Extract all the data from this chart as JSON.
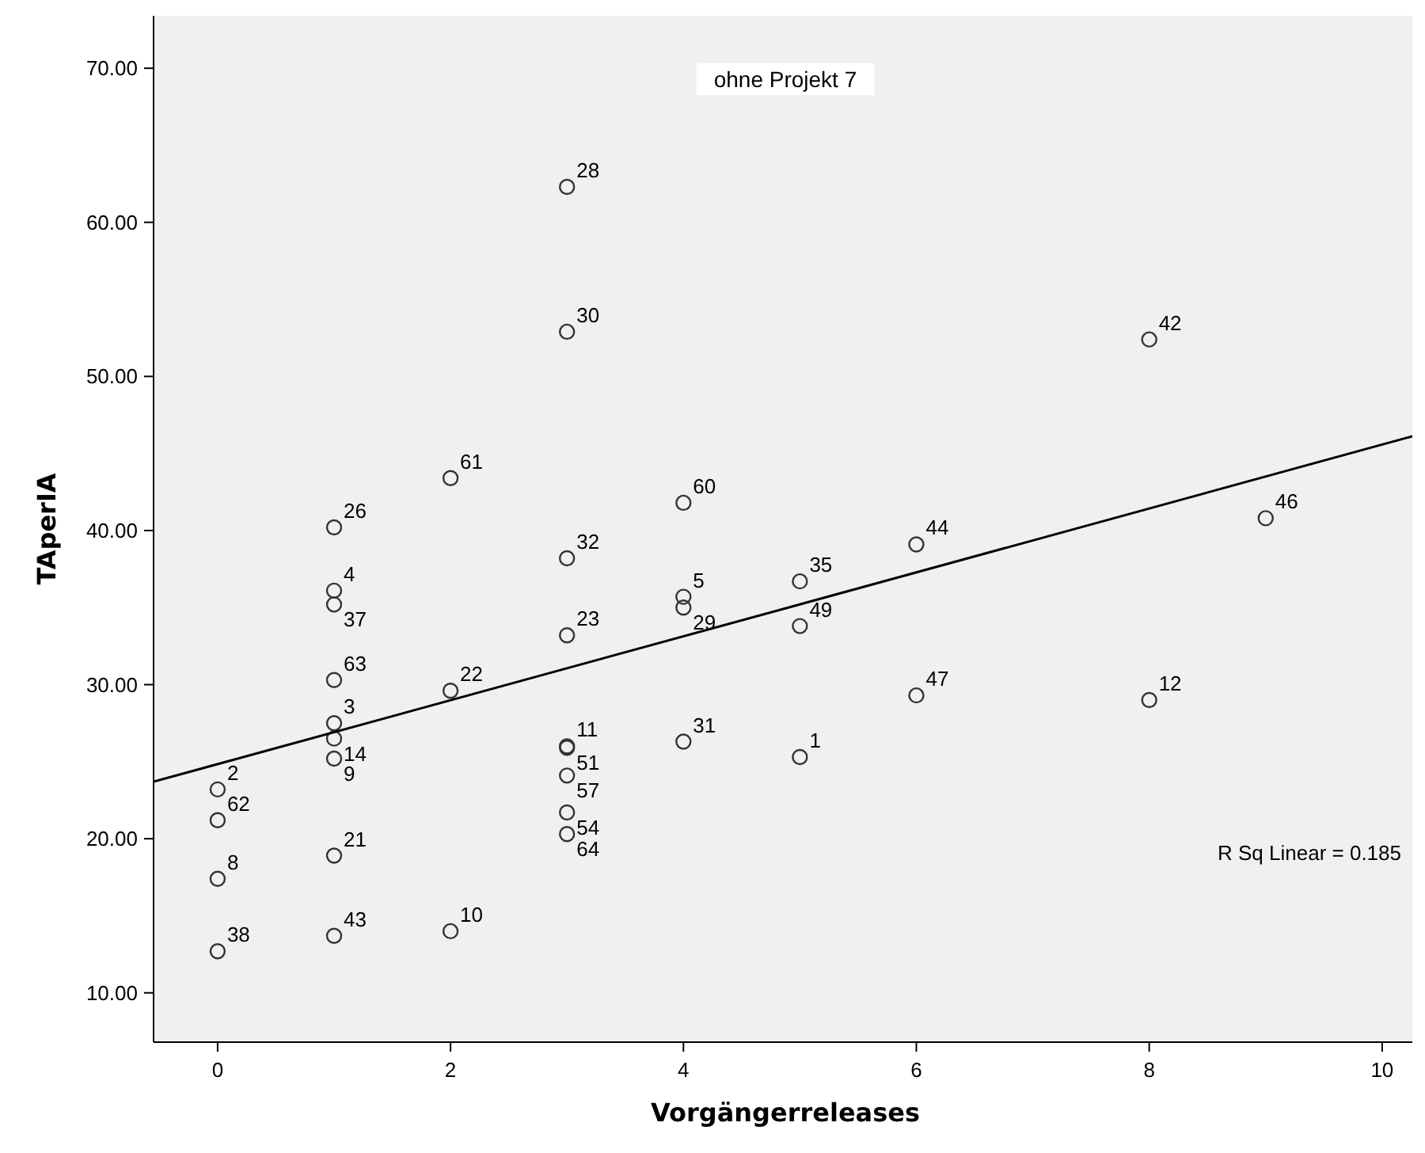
{
  "chart_data": {
    "type": "scatter",
    "title": "ohne Projekt 7",
    "xlabel": "Vorgängerreleases",
    "ylabel": "TAperIA",
    "xlim": [
      -0.55,
      10.3
    ],
    "ylim": [
      6.8,
      73.4
    ],
    "xticks": [
      0,
      2,
      4,
      6,
      8,
      10
    ],
    "yticks": [
      {
        "value": 10,
        "label": "10.00"
      },
      {
        "value": 20,
        "label": "20.00"
      },
      {
        "value": 30,
        "label": "30.00"
      },
      {
        "value": 40,
        "label": "40.00"
      },
      {
        "value": 50,
        "label": "50.00"
      },
      {
        "value": 60,
        "label": "60.00"
      },
      {
        "value": 70,
        "label": "70.00"
      }
    ],
    "grid": false,
    "marker": "circle",
    "series": [
      {
        "color": "#333333",
        "x": [
          3,
          3,
          2,
          1,
          4,
          3,
          1,
          1,
          4,
          4,
          3,
          1,
          2,
          1,
          1,
          1,
          3,
          3,
          4,
          3,
          3,
          3,
          0,
          0,
          1,
          0,
          1,
          2,
          0,
          8,
          9,
          6,
          5,
          5,
          6,
          8,
          5
        ],
        "values": [
          62.3,
          52.9,
          43.4,
          40.2,
          41.8,
          38.2,
          36.1,
          35.2,
          35.7,
          35.0,
          33.2,
          30.3,
          29.6,
          27.5,
          26.5,
          25.2,
          26.0,
          25.9,
          26.3,
          24.1,
          21.7,
          20.3,
          23.2,
          21.2,
          18.9,
          17.4,
          13.7,
          14.0,
          12.7,
          52.4,
          40.8,
          39.1,
          36.7,
          33.8,
          29.3,
          29.0,
          25.3
        ]
      },
      {
        "type": "line",
        "color": "#000000",
        "x": [
          -0.55,
          10.3
        ],
        "values": [
          23.7,
          46.2
        ],
        "marker": "none"
      }
    ],
    "annotations": [
      "R Sq Linear = 0.185",
      {
        "text": "28",
        "x": 3,
        "y": 62.3
      },
      {
        "text": "30",
        "x": 3,
        "y": 52.9
      },
      {
        "text": "61",
        "x": 2,
        "y": 43.4
      },
      {
        "text": "26",
        "x": 1,
        "y": 40.2
      },
      {
        "text": "60",
        "x": 4,
        "y": 41.8
      },
      {
        "text": "32",
        "x": 3,
        "y": 38.2
      },
      {
        "text": "4",
        "x": 1,
        "y": 36.1
      },
      {
        "text": "37",
        "x": 1,
        "y": 35.2
      },
      {
        "text": "5",
        "x": 4,
        "y": 35.7
      },
      {
        "text": "29",
        "x": 4,
        "y": 35.0
      },
      {
        "text": "23",
        "x": 3,
        "y": 33.2
      },
      {
        "text": "63",
        "x": 1,
        "y": 30.3
      },
      {
        "text": "22",
        "x": 2,
        "y": 29.6
      },
      {
        "text": "3",
        "x": 1,
        "y": 27.5
      },
      {
        "text": "14",
        "x": 1,
        "y": 26.5
      },
      {
        "text": "9",
        "x": 1,
        "y": 25.2
      },
      {
        "text": "11",
        "x": 3,
        "y": 26.0
      },
      {
        "text": "51",
        "x": 3,
        "y": 25.9
      },
      {
        "text": "31",
        "x": 4,
        "y": 26.3
      },
      {
        "text": "57",
        "x": 3,
        "y": 24.1
      },
      {
        "text": "54",
        "x": 3,
        "y": 21.7
      },
      {
        "text": "64",
        "x": 3,
        "y": 20.3
      },
      {
        "text": "2",
        "x": 0,
        "y": 23.2
      },
      {
        "text": "62",
        "x": 0,
        "y": 21.2
      },
      {
        "text": "21",
        "x": 1,
        "y": 18.9
      },
      {
        "text": "8",
        "x": 0,
        "y": 17.4
      },
      {
        "text": "43",
        "x": 1,
        "y": 13.7
      },
      {
        "text": "10",
        "x": 2,
        "y": 14.0
      },
      {
        "text": "38",
        "x": 0,
        "y": 12.7
      },
      {
        "text": "42",
        "x": 8,
        "y": 52.4
      },
      {
        "text": "46",
        "x": 9,
        "y": 40.8
      },
      {
        "text": "44",
        "x": 6,
        "y": 39.1
      },
      {
        "text": "35",
        "x": 5,
        "y": 36.7
      },
      {
        "text": "49",
        "x": 5,
        "y": 33.8
      },
      {
        "text": "47",
        "x": 6,
        "y": 29.3
      },
      {
        "text": "12",
        "x": 8,
        "y": 29.0
      },
      {
        "text": "1",
        "x": 5,
        "y": 25.3
      }
    ]
  }
}
